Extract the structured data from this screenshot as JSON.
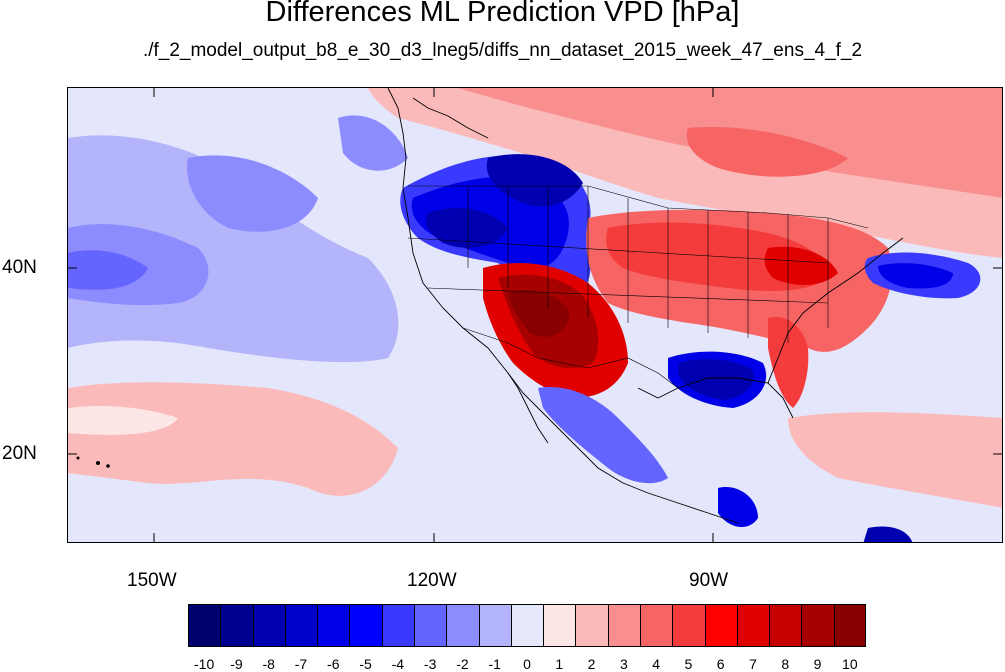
{
  "title": "Differences ML Prediction VPD [hPa]",
  "subtitle": "./f_2_model_output_b8_e_30_d3_lneg5/diffs_nn_dataset_2015_week_47_ens_4_f_2",
  "axes": {
    "lat_labels": [
      "40N",
      "20N"
    ],
    "lon_labels": [
      "150W",
      "120W",
      "90W"
    ]
  },
  "colorbar": {
    "labels": [
      "-10",
      "-9",
      "-8",
      "-7",
      "-6",
      "-5",
      "-4",
      "-3",
      "-2",
      "-1",
      "0",
      "1",
      "2",
      "3",
      "4",
      "5",
      "6",
      "7",
      "8",
      "9",
      "10"
    ],
    "colors": [
      "#00006e",
      "#000090",
      "#0000b0",
      "#0000cc",
      "#0000e8",
      "#0000ff",
      "#3a3aff",
      "#6464ff",
      "#8c8cff",
      "#b4b4fa",
      "#e6e8fb",
      "#fde6e6",
      "#fbbaba",
      "#f98e8e",
      "#f76464",
      "#f43c3c",
      "#ff0000",
      "#e00000",
      "#c40000",
      "#a60000",
      "#880000"
    ]
  },
  "map_regions": {
    "ocean_base": "#e4e6fb",
    "canada_north": "#f98e8e",
    "northwest_us": "#0000cc",
    "southwest_us": "#c40000",
    "central_east_us": "#f43c3c",
    "gulf_coast": "#0000e8",
    "pacific_blue": "#8c8cff",
    "pacific_red": "#fbbaba"
  }
}
